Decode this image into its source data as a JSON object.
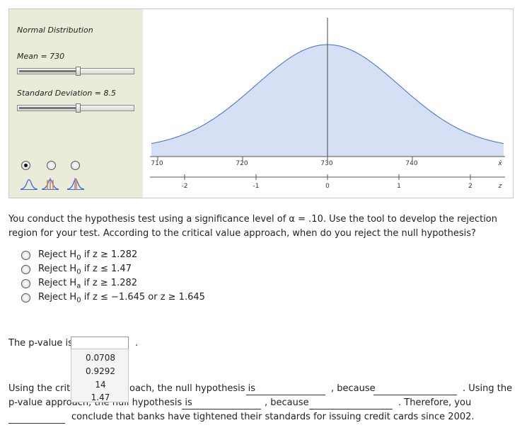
{
  "applet": {
    "title": "Normal Distribution",
    "mean_label": "Mean = 730",
    "sd_label": "Standard Deviation = 8.5",
    "mean_slider_level": 0.52,
    "sd_slider_level": 0.52,
    "selected_radio": 0,
    "x_axis": {
      "ticks": [
        "710",
        "720",
        "730",
        "740"
      ],
      "end_label": "x̄"
    },
    "z_axis": {
      "ticks": [
        "-2",
        "-1",
        "0",
        "1",
        "2"
      ],
      "end_label": "z"
    },
    "curve": {
      "mean": 730,
      "sd": 8.5,
      "fill": "#d5e0f4",
      "stroke": "#3d6bd6"
    }
  },
  "question": {
    "text": "You conduct the hypothesis test using a significance level of α = .10. Use the tool to develop the rejection region for your test. According to the critical value approach, when do you reject the null hypothesis?",
    "options": [
      {
        "pre": "Reject H",
        "sub": "0",
        "post": " if z ≥ 1.282"
      },
      {
        "pre": "Reject H",
        "sub": "0",
        "post": " if z ≤ 1.47"
      },
      {
        "pre": "Reject H",
        "sub": "a",
        "post": " if z ≥ 1.282"
      },
      {
        "pre": "Reject H",
        "sub": "0",
        "post": " if z ≤ −1.645 or z ≥ 1.645"
      }
    ]
  },
  "pvalue": {
    "label": "The p-value is",
    "period": ".",
    "dropdown_options": [
      "0.0708",
      "0.9292",
      "14",
      "1.47"
    ]
  },
  "conclusion": {
    "l1_a": "Using the critic",
    "l1_b": "oach, the null hypothesis is",
    "l1_c": ", because",
    "l1_d": ". Using the",
    "l2_a": "p-value approach, the null hypothesis is",
    "l2_b": ", because",
    "l2_c": ". Therefore, you",
    "l3": "conclude that banks have tightened their standards for issuing credit cards since 2002."
  }
}
